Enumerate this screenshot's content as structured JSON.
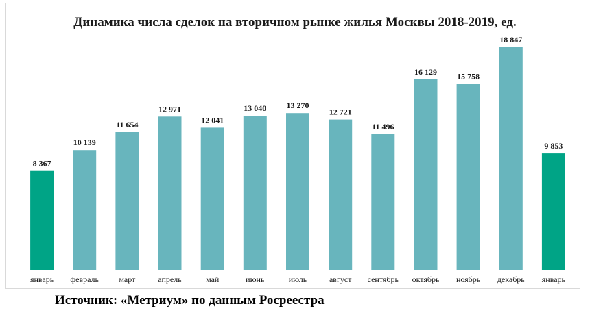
{
  "chart_data": {
    "type": "bar",
    "title": "Динамика числа сделок на вторичном рынке жилья Москвы 2018-2019, ед.",
    "xlabel": "",
    "ylabel": "",
    "categories": [
      "январь",
      "февраль",
      "март",
      "апрель",
      "май",
      "июнь",
      "июль",
      "август",
      "сентябрь",
      "октябрь",
      "ноябрь",
      "декабрь",
      "январь"
    ],
    "values": [
      8367,
      10139,
      11654,
      12971,
      12041,
      13040,
      13270,
      12721,
      11496,
      16129,
      15758,
      18847,
      9853
    ],
    "value_labels": [
      "8 367",
      "10 139",
      "11 654",
      "12 971",
      "12 041",
      "13 040",
      "13 270",
      "12 721",
      "11 496",
      "16 129",
      "15 758",
      "18 847",
      "9 853"
    ],
    "highlight_indices": [
      0,
      12
    ],
    "ylim": [
      0,
      18847
    ],
    "grid": false,
    "legend": "none",
    "colors": {
      "bar": "#68B5BD",
      "highlight": "#00A486",
      "baseline": "#d9d9d9"
    }
  },
  "source_text": "Источник: «Метриум» по данным Росреестра"
}
